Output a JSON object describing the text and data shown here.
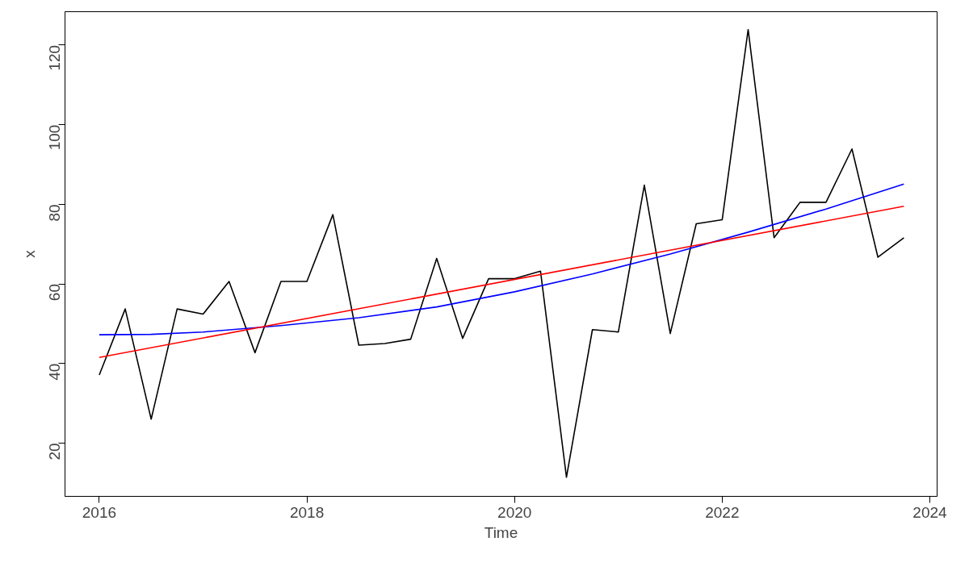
{
  "chart_data": {
    "type": "line",
    "xlabel": "Time",
    "ylabel": "x",
    "xlim": [
      2015.67,
      2024.07
    ],
    "ylim": [
      6.6,
      128.4
    ],
    "xticks": [
      2016,
      2018,
      2020,
      2022,
      2024
    ],
    "yticks": [
      20,
      40,
      60,
      80,
      100,
      120
    ],
    "grid": false,
    "marker": "none",
    "line_style": "solid",
    "series": [
      {
        "color": "#000000",
        "x": [
          2016,
          2016.25,
          2016.5,
          2016.75,
          2017,
          2017.25,
          2017.5,
          2017.75,
          2018,
          2018.25,
          2018.5,
          2018.75,
          2019,
          2019.25,
          2019.5,
          2019.75,
          2020,
          2020.25,
          2020.5,
          2020.75,
          2021,
          2021.25,
          2021.5,
          2021.75,
          2022,
          2022.25,
          2022.5,
          2022.75,
          2023,
          2023.25,
          2023.5,
          2023.75
        ],
        "values": [
          37.1,
          53.7,
          26,
          53.7,
          52.4,
          60.6,
          42.7,
          60.6,
          60.6,
          77.4,
          44.6,
          45,
          46.1,
          66.4,
          46.3,
          61.3,
          61.3,
          63.2,
          11.4,
          48.5,
          47.9,
          84.8,
          47.5,
          75.1,
          76.1,
          123.9,
          71.6,
          80.5,
          80.5,
          93.9,
          66.7,
          71.6
        ]
      },
      {
        "color": "#0000ff",
        "x": [
          2016,
          2016.5,
          2017,
          2017.75,
          2018.5,
          2019.25,
          2020,
          2020.75,
          2021.5,
          2022.25,
          2023,
          2023.75
        ],
        "values": [
          47.2,
          47.3,
          47.9,
          49.5,
          51.5,
          54.2,
          58,
          62.5,
          67.5,
          73,
          78.8,
          85.1
        ]
      },
      {
        "color": "#ff0000",
        "x": [
          2016,
          2023.75
        ],
        "values": [
          41.5,
          79.5
        ]
      }
    ]
  }
}
